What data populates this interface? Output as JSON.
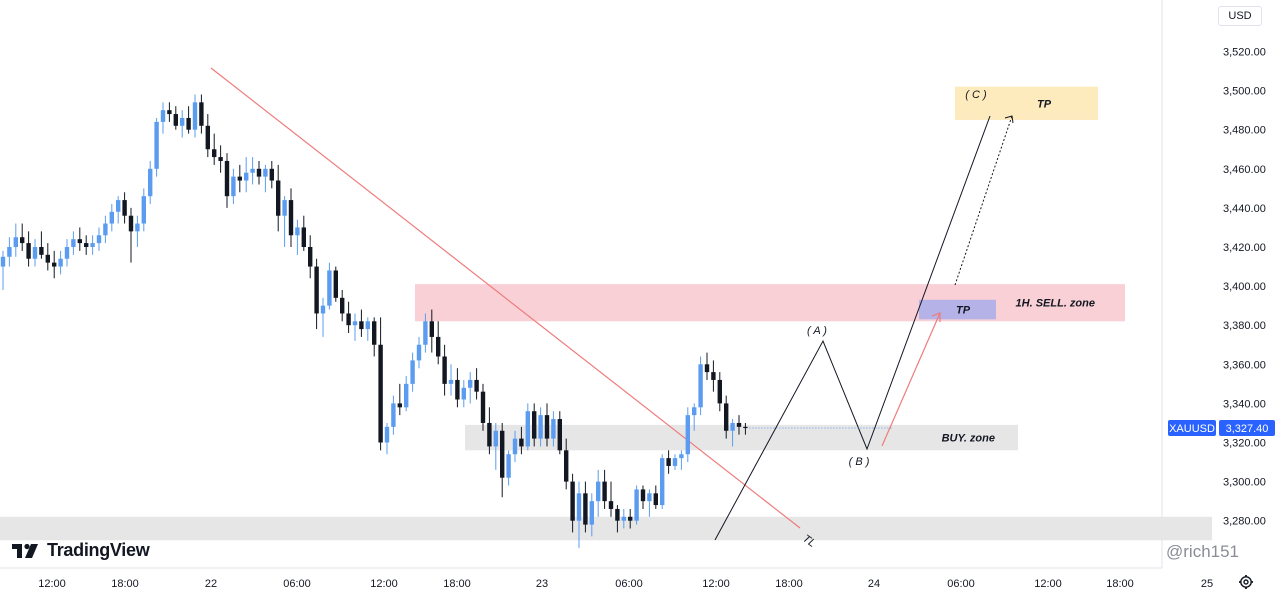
{
  "chart_data": {
    "type": "candlestick",
    "symbol": "XAUUSD",
    "currency": "USD",
    "current_price": "3,327.40",
    "ylim": [
      3268,
      3540
    ],
    "y_ticks": [
      "3,520.00",
      "3,500.00",
      "3,480.00",
      "3,460.00",
      "3,440.00",
      "3,420.00",
      "3,400.00",
      "3,380.00",
      "3,360.00",
      "3,340.00",
      "3,320.00",
      "3,300.00",
      "3,280.00"
    ],
    "x_ticks": [
      "12:00",
      "18:00",
      "22",
      "06:00",
      "12:00",
      "18:00",
      "23",
      "06:00",
      "12:00",
      "18:00",
      "24",
      "06:00",
      "12:00",
      "18:00",
      "25"
    ],
    "candles": [
      [
        3410,
        3418,
        3398,
        3415
      ],
      [
        3415,
        3425,
        3410,
        3420
      ],
      [
        3420,
        3432,
        3415,
        3425
      ],
      [
        3425,
        3432,
        3418,
        3422
      ],
      [
        3422,
        3428,
        3410,
        3414
      ],
      [
        3414,
        3424,
        3410,
        3420
      ],
      [
        3420,
        3428,
        3414,
        3416
      ],
      [
        3416,
        3422,
        3408,
        3412
      ],
      [
        3412,
        3418,
        3404,
        3410
      ],
      [
        3410,
        3418,
        3406,
        3414
      ],
      [
        3414,
        3424,
        3410,
        3420
      ],
      [
        3420,
        3428,
        3416,
        3424
      ],
      [
        3424,
        3430,
        3418,
        3422
      ],
      [
        3422,
        3426,
        3416,
        3420
      ],
      [
        3420,
        3426,
        3416,
        3422
      ],
      [
        3422,
        3430,
        3418,
        3426
      ],
      [
        3426,
        3436,
        3422,
        3432
      ],
      [
        3432,
        3442,
        3428,
        3438
      ],
      [
        3438,
        3446,
        3432,
        3444
      ],
      [
        3444,
        3448,
        3432,
        3436
      ],
      [
        3436,
        3440,
        3412,
        3428
      ],
      [
        3428,
        3436,
        3420,
        3432
      ],
      [
        3432,
        3450,
        3428,
        3446
      ],
      [
        3446,
        3464,
        3442,
        3460
      ],
      [
        3460,
        3486,
        3456,
        3484
      ],
      [
        3484,
        3494,
        3478,
        3490
      ],
      [
        3490,
        3494,
        3484,
        3488
      ],
      [
        3488,
        3492,
        3480,
        3482
      ],
      [
        3482,
        3490,
        3476,
        3486
      ],
      [
        3486,
        3492,
        3478,
        3480
      ],
      [
        3480,
        3498,
        3476,
        3494
      ],
      [
        3494,
        3498,
        3478,
        3482
      ],
      [
        3482,
        3488,
        3466,
        3470
      ],
      [
        3470,
        3478,
        3462,
        3466
      ],
      [
        3466,
        3472,
        3458,
        3464
      ],
      [
        3464,
        3468,
        3440,
        3446
      ],
      [
        3446,
        3460,
        3442,
        3456
      ],
      [
        3456,
        3462,
        3448,
        3454
      ],
      [
        3454,
        3466,
        3448,
        3458
      ],
      [
        3458,
        3466,
        3452,
        3460
      ],
      [
        3460,
        3464,
        3452,
        3456
      ],
      [
        3456,
        3462,
        3448,
        3460
      ],
      [
        3460,
        3464,
        3450,
        3454
      ],
      [
        3454,
        3462,
        3428,
        3436
      ],
      [
        3436,
        3446,
        3420,
        3444
      ],
      [
        3444,
        3450,
        3420,
        3426
      ],
      [
        3426,
        3434,
        3416,
        3430
      ],
      [
        3430,
        3436,
        3418,
        3420
      ],
      [
        3420,
        3426,
        3404,
        3410
      ],
      [
        3410,
        3414,
        3378,
        3386
      ],
      [
        3386,
        3394,
        3374,
        3390
      ],
      [
        3390,
        3412,
        3388,
        3408
      ],
      [
        3408,
        3410,
        3392,
        3394
      ],
      [
        3394,
        3398,
        3382,
        3386
      ],
      [
        3386,
        3392,
        3376,
        3380
      ],
      [
        3380,
        3386,
        3372,
        3382
      ],
      [
        3382,
        3388,
        3374,
        3378
      ],
      [
        3378,
        3384,
        3372,
        3382
      ],
      [
        3382,
        3384,
        3364,
        3370
      ],
      [
        3370,
        3384,
        3316,
        3320
      ],
      [
        3320,
        3330,
        3314,
        3328
      ],
      [
        3328,
        3344,
        3324,
        3340
      ],
      [
        3340,
        3350,
        3334,
        3338
      ],
      [
        3338,
        3354,
        3336,
        3350
      ],
      [
        3350,
        3366,
        3346,
        3362
      ],
      [
        3362,
        3374,
        3358,
        3370
      ],
      [
        3370,
        3386,
        3366,
        3382
      ],
      [
        3382,
        3388,
        3366,
        3374
      ],
      [
        3374,
        3382,
        3360,
        3364
      ],
      [
        3364,
        3370,
        3344,
        3350
      ],
      [
        3350,
        3360,
        3344,
        3352
      ],
      [
        3352,
        3358,
        3338,
        3342
      ],
      [
        3342,
        3352,
        3338,
        3348
      ],
      [
        3348,
        3356,
        3340,
        3352
      ],
      [
        3352,
        3358,
        3342,
        3346
      ],
      [
        3346,
        3350,
        3326,
        3330
      ],
      [
        3330,
        3338,
        3314,
        3318
      ],
      [
        3318,
        3330,
        3306,
        3326
      ],
      [
        3326,
        3330,
        3292,
        3302
      ],
      [
        3302,
        3316,
        3298,
        3314
      ],
      [
        3314,
        3326,
        3310,
        3322
      ],
      [
        3322,
        3328,
        3314,
        3318
      ],
      [
        3318,
        3340,
        3316,
        3336
      ],
      [
        3336,
        3340,
        3318,
        3322
      ],
      [
        3322,
        3338,
        3318,
        3334
      ],
      [
        3334,
        3340,
        3318,
        3322
      ],
      [
        3322,
        3336,
        3318,
        3332
      ],
      [
        3332,
        3336,
        3314,
        3316
      ],
      [
        3316,
        3322,
        3296,
        3300
      ],
      [
        3300,
        3304,
        3274,
        3280
      ],
      [
        3280,
        3300,
        3266,
        3294
      ],
      [
        3294,
        3300,
        3274,
        3278
      ],
      [
        3278,
        3294,
        3272,
        3290
      ],
      [
        3290,
        3306,
        3282,
        3300
      ],
      [
        3300,
        3306,
        3286,
        3290
      ],
      [
        3290,
        3300,
        3282,
        3286
      ],
      [
        3286,
        3288,
        3274,
        3280
      ],
      [
        3280,
        3286,
        3276,
        3282
      ],
      [
        3282,
        3286,
        3276,
        3280
      ],
      [
        3280,
        3298,
        3278,
        3296
      ],
      [
        3296,
        3298,
        3286,
        3290
      ],
      [
        3290,
        3296,
        3282,
        3294
      ],
      [
        3294,
        3298,
        3286,
        3288
      ],
      [
        3288,
        3314,
        3286,
        3312
      ],
      [
        3312,
        3316,
        3304,
        3308
      ],
      [
        3308,
        3314,
        3306,
        3312
      ],
      [
        3312,
        3316,
        3306,
        3314
      ],
      [
        3314,
        3338,
        3310,
        3334
      ],
      [
        3334,
        3340,
        3326,
        3338
      ],
      [
        3338,
        3364,
        3334,
        3360
      ],
      [
        3360,
        3366,
        3352,
        3356
      ],
      [
        3356,
        3362,
        3346,
        3352
      ],
      [
        3352,
        3356,
        3336,
        3340
      ],
      [
        3340,
        3344,
        3322,
        3326
      ],
      [
        3326,
        3332,
        3318,
        3330
      ],
      [
        3330,
        3334,
        3324,
        3328
      ],
      [
        3328,
        3330,
        3324,
        3327.4
      ]
    ],
    "zones": [
      {
        "label": "1H. SELL. zone",
        "range": [
          3382,
          3401
        ],
        "color": "#f9d0d6"
      },
      {
        "label": "BUY. zone",
        "range": [
          3316,
          3329
        ],
        "color": "#e6e6e6"
      },
      {
        "label": "",
        "range": [
          3270,
          3282
        ],
        "color": "#e6e6e6"
      }
    ],
    "targets": [
      {
        "label": "TP",
        "range": [
          3383,
          3393
        ],
        "color": "#b5b2e8"
      },
      {
        "label": "TP",
        "range": [
          3485,
          3502
        ],
        "color": "#fdebbd"
      }
    ],
    "wave_labels": [
      "( A )",
      "( B )",
      "( C )"
    ],
    "trendline_label": "TL",
    "up_color": "#5b9cf0",
    "down_color": "#131722"
  },
  "branding": {
    "logo_text": "TradingView",
    "watermark": "@rich151"
  },
  "toolbar": {
    "currency_button": "USD"
  },
  "icons": {
    "settings": "gear-icon",
    "logo": "tradingview-logo-icon"
  }
}
